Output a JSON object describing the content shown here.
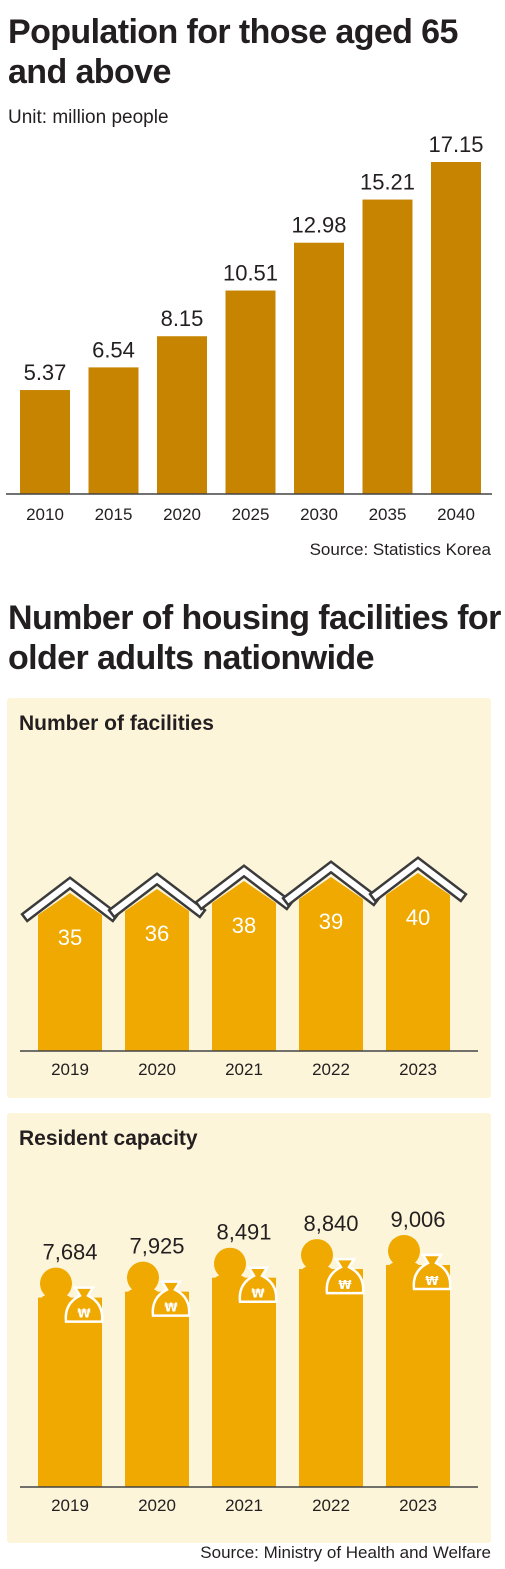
{
  "colors": {
    "population_bar": "#c68400",
    "facility_bar": "#efa900",
    "panel_bg": "#fdf5da",
    "roof_stroke": "#3b3b3b"
  },
  "population": {
    "title": "Population for those aged 65 and above",
    "unit": "Unit: million people",
    "source": "Source: Statistics Korea",
    "chart_data": {
      "type": "bar",
      "title": "Population for those aged 65 and above",
      "ylabel": "Unit: million people",
      "categories": [
        "2010",
        "2015",
        "2020",
        "2025",
        "2030",
        "2035",
        "2040"
      ],
      "values": [
        5.37,
        6.54,
        8.15,
        10.51,
        12.98,
        15.21,
        17.15
      ],
      "value_labels": [
        "5.37",
        "6.54",
        "8.15",
        "10.51",
        "12.98",
        "15.21",
        "17.15"
      ],
      "ylim": [
        0,
        17.15
      ],
      "grid": false
    }
  },
  "housing": {
    "title": "Number of housing facilities for older adults nationwide",
    "source": "Source: Ministry of Health and Welfare",
    "facilities": {
      "title": "Number of facilities",
      "icon": "house-roof-icon",
      "chart_data": {
        "type": "bar",
        "title": "Number of facilities",
        "categories": [
          "2019",
          "2020",
          "2021",
          "2022",
          "2023"
        ],
        "values": [
          35,
          36,
          38,
          39,
          40
        ],
        "value_labels": [
          "35",
          "36",
          "38",
          "39",
          "40"
        ],
        "ylim": [
          0,
          40
        ],
        "grid": false
      }
    },
    "capacity": {
      "title": "Resident capacity",
      "icon": "person-with-money-bag-icon",
      "money_symbol": "₩",
      "chart_data": {
        "type": "bar",
        "title": "Resident capacity",
        "categories": [
          "2019",
          "2020",
          "2021",
          "2022",
          "2023"
        ],
        "values": [
          7684,
          7925,
          8491,
          8840,
          9006
        ],
        "value_labels": [
          "7,684",
          "7,925",
          "8,491",
          "8,840",
          "9,006"
        ],
        "ylim": [
          0,
          9006
        ],
        "grid": false
      }
    }
  }
}
